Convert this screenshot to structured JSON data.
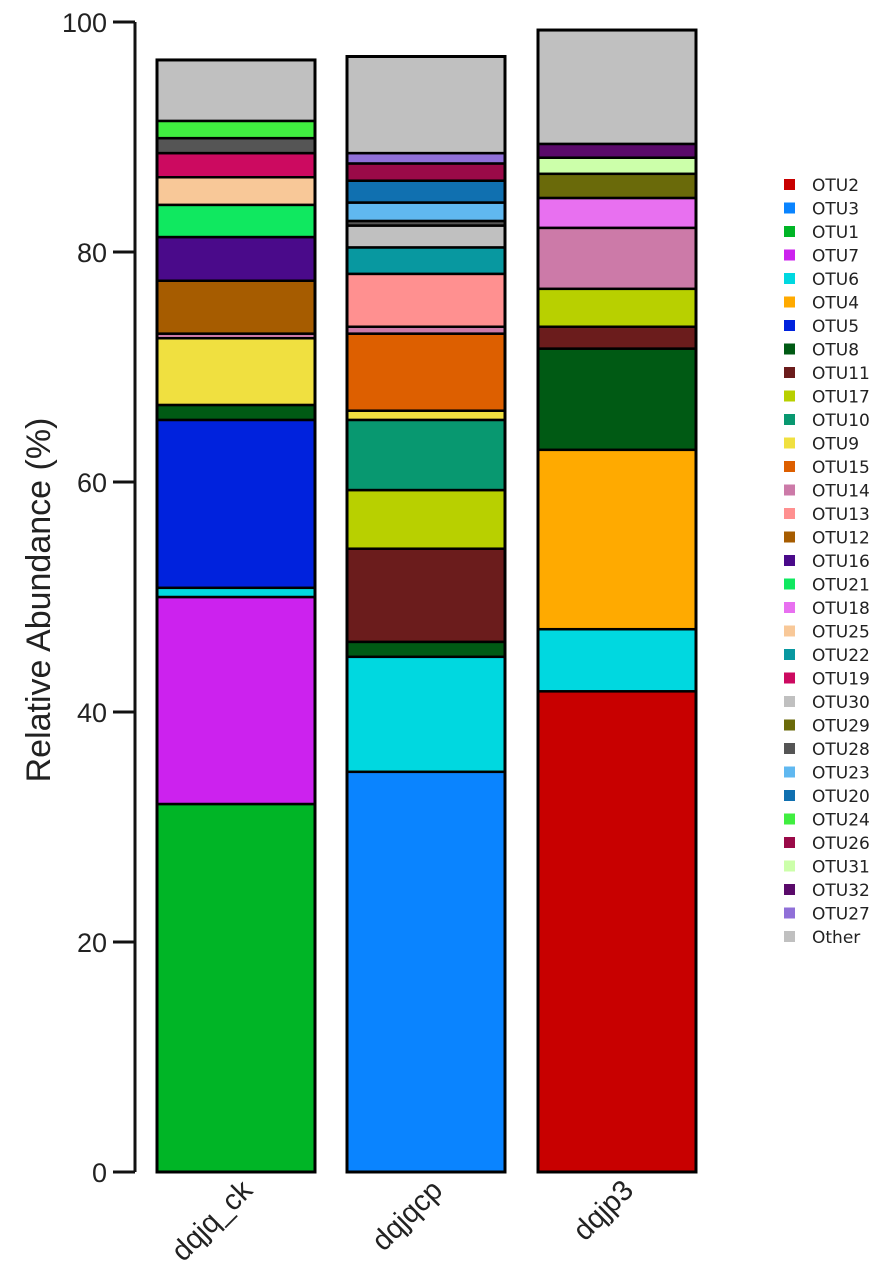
{
  "chart_data": {
    "type": "bar",
    "stacked": true,
    "ylabel": "Relative Abundance (%)",
    "ylim": [
      0,
      100
    ],
    "yticks": [
      0,
      20,
      40,
      60,
      80,
      100
    ],
    "ytick_labels": [
      "0",
      "20",
      "40",
      "60",
      "80",
      "100"
    ],
    "categories": [
      "dqjq_ck",
      "dqjqcp",
      "dqjp3"
    ],
    "legend_position": "right",
    "series": [
      {
        "name": "OTU2",
        "color": "#c80000",
        "values": [
          0,
          0,
          41.8
        ]
      },
      {
        "name": "OTU3",
        "color": "#0a84ff",
        "values": [
          0,
          34.8,
          0
        ]
      },
      {
        "name": "OTU1",
        "color": "#00b526",
        "values": [
          32.0,
          0,
          0
        ]
      },
      {
        "name": "OTU7",
        "color": "#cc22ee",
        "values": [
          18.0,
          0,
          0
        ]
      },
      {
        "name": "OTU6",
        "color": "#00d8e0",
        "values": [
          0.8,
          10.0,
          5.4
        ]
      },
      {
        "name": "OTU4",
        "color": "#ffaa00",
        "values": [
          0,
          0,
          15.6
        ]
      },
      {
        "name": "OTU5",
        "color": "#0022dd",
        "values": [
          14.6,
          0,
          0
        ]
      },
      {
        "name": "OTU8",
        "color": "#005a14",
        "values": [
          1.3,
          1.3,
          8.8
        ]
      },
      {
        "name": "OTU11",
        "color": "#6b1c1c",
        "values": [
          0,
          8.1,
          1.9
        ]
      },
      {
        "name": "OTU17",
        "color": "#b8d000",
        "values": [
          0,
          5.1,
          3.3
        ]
      },
      {
        "name": "OTU10",
        "color": "#089870",
        "values": [
          0,
          6.1,
          0
        ]
      },
      {
        "name": "OTU9",
        "color": "#f0e040",
        "values": [
          5.8,
          0.8,
          0
        ]
      },
      {
        "name": "OTU15",
        "color": "#dd5f00",
        "values": [
          0,
          6.7,
          0
        ]
      },
      {
        "name": "OTU14",
        "color": "#cc7aa8",
        "values": [
          0.4,
          0.6,
          5.3
        ]
      },
      {
        "name": "OTU13",
        "color": "#ff9090",
        "values": [
          0,
          4.6,
          0
        ]
      },
      {
        "name": "OTU12",
        "color": "#a65c00",
        "values": [
          4.6,
          0,
          0
        ]
      },
      {
        "name": "OTU16",
        "color": "#4a0a8a",
        "values": [
          3.8,
          0,
          0
        ]
      },
      {
        "name": "OTU21",
        "color": "#10e860",
        "values": [
          2.8,
          0,
          0
        ]
      },
      {
        "name": "OTU18",
        "color": "#e870f0",
        "values": [
          0,
          0,
          2.6
        ]
      },
      {
        "name": "OTU25",
        "color": "#f8c898",
        "values": [
          2.4,
          0,
          0
        ]
      },
      {
        "name": "OTU22",
        "color": "#0898a0",
        "values": [
          0,
          2.3,
          0
        ]
      },
      {
        "name": "OTU19",
        "color": "#cc0a60",
        "values": [
          2.1,
          0,
          0
        ]
      },
      {
        "name": "OTU30",
        "color": "#c0c0c0",
        "values": [
          0,
          1.9,
          0
        ]
      },
      {
        "name": "OTU29",
        "color": "#6a6a0a",
        "values": [
          0,
          0,
          2.1
        ]
      },
      {
        "name": "OTU28",
        "color": "#555555",
        "values": [
          1.3,
          0.4,
          0
        ]
      },
      {
        "name": "OTU23",
        "color": "#60b8f0",
        "values": [
          0,
          1.6,
          0
        ]
      },
      {
        "name": "OTU20",
        "color": "#1070b0",
        "values": [
          0,
          1.9,
          0
        ]
      },
      {
        "name": "OTU24",
        "color": "#40ee40",
        "values": [
          1.5,
          0,
          0
        ]
      },
      {
        "name": "OTU26",
        "color": "#9a0a48",
        "values": [
          0,
          1.5,
          0
        ]
      },
      {
        "name": "OTU31",
        "color": "#ccffaa",
        "values": [
          0,
          0,
          1.4
        ]
      },
      {
        "name": "OTU32",
        "color": "#5a0a6a",
        "values": [
          0,
          0,
          1.2
        ]
      },
      {
        "name": "OTU27",
        "color": "#9070d8",
        "values": [
          0,
          0.9,
          0
        ]
      },
      {
        "name": "Other",
        "color": "#c0c0c0",
        "values": [
          5.3,
          8.4,
          9.9
        ]
      }
    ]
  }
}
